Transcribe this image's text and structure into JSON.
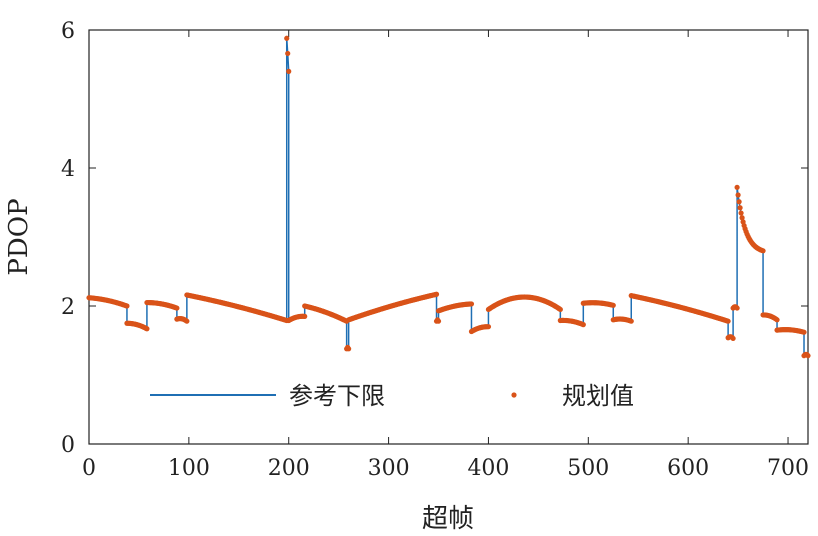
{
  "chart_data": {
    "type": "line",
    "xlabel": "超帧",
    "ylabel": "PDOP",
    "xlim": [
      0,
      720
    ],
    "ylim": [
      0,
      6
    ],
    "x_ticks": [
      0,
      100,
      200,
      300,
      400,
      500,
      600,
      700
    ],
    "y_ticks": [
      0,
      2,
      4,
      6
    ],
    "grid": false,
    "legend_position": "bottom-center",
    "colors": {
      "reference": "#1f6fb4",
      "planned": "#d95319"
    },
    "series": [
      {
        "name": "参考下限",
        "style": "line",
        "segments": [
          {
            "x": [
              0,
              38
            ],
            "y": [
              2.12,
              2.0
            ],
            "curve": "arc"
          },
          {
            "x": [
              38,
              58
            ],
            "y": [
              1.75,
              1.67
            ],
            "curve": "arc"
          },
          {
            "x": [
              58,
              88
            ],
            "y": [
              2.05,
              1.97
            ],
            "curve": "arc"
          },
          {
            "x": [
              88,
              98
            ],
            "y": [
              1.81,
              1.78
            ],
            "curve": "arc"
          },
          {
            "x": [
              98,
              198
            ],
            "y": [
              2.16,
              1.79
            ],
            "curve": "arc"
          },
          {
            "x": [
              198,
              200
            ],
            "y": [
              5.88,
              5.4
            ],
            "curve": "arc"
          },
          {
            "x": [
              200,
              216
            ],
            "y": [
              1.79,
              1.85
            ],
            "curve": "arc"
          },
          {
            "x": [
              216,
              258
            ],
            "y": [
              2.0,
              1.78
            ],
            "curve": "arc"
          },
          {
            "x": [
              258,
              260
            ],
            "y": [
              1.38,
              1.38
            ],
            "curve": "arc"
          },
          {
            "x": [
              260,
              348
            ],
            "y": [
              1.8,
              2.17
            ],
            "curve": "arc"
          },
          {
            "x": [
              348,
              350
            ],
            "y": [
              1.78,
              1.78
            ],
            "curve": "arc"
          },
          {
            "x": [
              350,
              383
            ],
            "y": [
              1.93,
              2.03
            ],
            "curve": "arc"
          },
          {
            "x": [
              383,
              400
            ],
            "y": [
              1.63,
              1.7
            ],
            "curve": "arc"
          },
          {
            "x": [
              400,
              472
            ],
            "y": [
              1.95,
              1.95
            ],
            "curve": "arc",
            "peak": 2.13
          },
          {
            "x": [
              472,
              495
            ],
            "y": [
              1.79,
              1.73
            ],
            "curve": "arc"
          },
          {
            "x": [
              495,
              525
            ],
            "y": [
              2.04,
              2.01
            ],
            "curve": "arc"
          },
          {
            "x": [
              525,
              543
            ],
            "y": [
              1.8,
              1.78
            ],
            "curve": "arc"
          },
          {
            "x": [
              543,
              640
            ],
            "y": [
              2.15,
              1.78
            ],
            "curve": "arc"
          },
          {
            "x": [
              640,
              645
            ],
            "y": [
              1.54,
              1.53
            ],
            "curve": "arc"
          },
          {
            "x": [
              645,
              649
            ],
            "y": [
              1.97,
              1.97
            ],
            "curve": "arc"
          },
          {
            "x": [
              649,
              675
            ],
            "y": [
              3.72,
              2.8
            ],
            "curve": "decay"
          },
          {
            "x": [
              675,
              689
            ],
            "y": [
              1.87,
              1.8
            ],
            "curve": "arc"
          },
          {
            "x": [
              689,
              716
            ],
            "y": [
              1.65,
              1.62
            ],
            "curve": "arc"
          },
          {
            "x": [
              716,
              720
            ],
            "y": [
              1.28,
              1.28
            ],
            "curve": "arc"
          }
        ]
      },
      {
        "name": "规划值",
        "style": "dots",
        "same_as": "参考下限"
      }
    ]
  }
}
